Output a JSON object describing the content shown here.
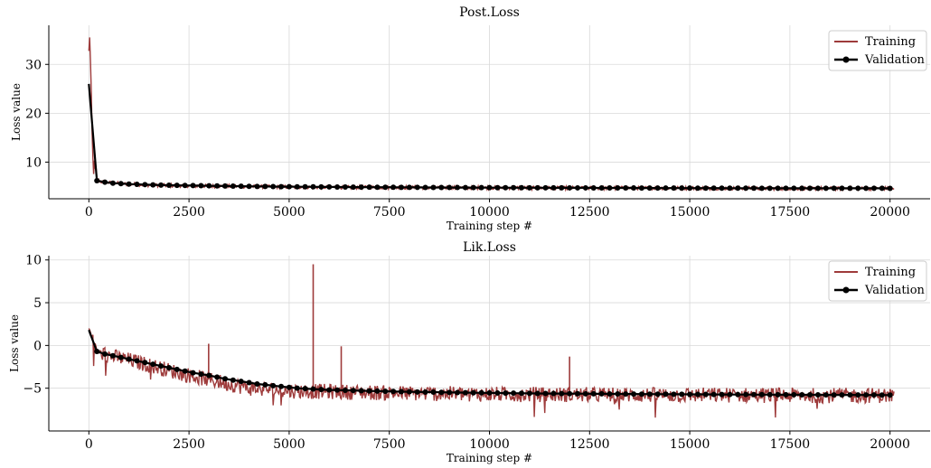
{
  "chart_data": [
    {
      "type": "line",
      "title": "Post.Loss",
      "xlabel": "Training step #",
      "ylabel": "Loss value",
      "xlim": [
        -1000,
        21000
      ],
      "ylim": [
        2.5,
        38
      ],
      "xticks": [
        0,
        2500,
        5000,
        7500,
        10000,
        12500,
        15000,
        17500,
        20000
      ],
      "yticks": [
        10,
        20,
        30
      ],
      "grid": true,
      "legend_position": "top-right",
      "series": [
        {
          "name": "Training",
          "style": "line",
          "color": "#9e3b3b",
          "x": [
            0,
            20,
            40,
            60,
            80,
            100,
            150,
            200,
            300,
            500,
            800,
            1000,
            1500,
            2000,
            3000,
            4000,
            5000,
            6000,
            8000,
            10000,
            12000,
            14000,
            16000,
            18000,
            20000
          ],
          "y": [
            32,
            36.5,
            30,
            22,
            15,
            10,
            8,
            6.5,
            6.0,
            5.8,
            5.6,
            5.5,
            5.3,
            5.2,
            5.1,
            5.0,
            4.9,
            4.85,
            4.8,
            4.75,
            4.7,
            4.7,
            4.65,
            4.6,
            4.6
          ]
        },
        {
          "name": "Validation",
          "style": "line-marker",
          "color": "#000000",
          "x": [
            0,
            200,
            400,
            600,
            800,
            1000,
            1200,
            1400,
            1600,
            1800,
            2000,
            2200,
            2400,
            2600,
            2800,
            3000,
            3200,
            3400,
            3600,
            3800,
            4000,
            4200,
            4400,
            4600,
            4800,
            5000,
            5200,
            5400,
            5600,
            5800,
            6000,
            6200,
            6400,
            6600,
            6800,
            7000,
            7200,
            7400,
            7600,
            7800,
            8000,
            8200,
            8400,
            8600,
            8800,
            9000,
            9200,
            9400,
            9600,
            9800,
            10000,
            10200,
            10400,
            10600,
            10800,
            11000,
            11200,
            11400,
            11600,
            11800,
            12000,
            12200,
            12400,
            12600,
            12800,
            13000,
            13200,
            13400,
            13600,
            13800,
            14000,
            14200,
            14400,
            14600,
            14800,
            15000,
            15200,
            15400,
            15600,
            15800,
            16000,
            16200,
            16400,
            16600,
            16800,
            17000,
            17200,
            17400,
            17600,
            17800,
            18000,
            18200,
            18400,
            18600,
            18800,
            19000,
            19200,
            19400,
            19600,
            19800,
            20000
          ],
          "y": [
            26,
            6.2,
            5.9,
            5.7,
            5.6,
            5.5,
            5.45,
            5.4,
            5.35,
            5.3,
            5.28,
            5.25,
            5.22,
            5.2,
            5.18,
            5.15,
            5.13,
            5.11,
            5.09,
            5.07,
            5.05,
            5.03,
            5.01,
            5.0,
            4.98,
            4.97,
            4.96,
            4.95,
            4.94,
            4.93,
            4.92,
            4.91,
            4.9,
            4.89,
            4.88,
            4.87,
            4.86,
            4.86,
            4.85,
            4.84,
            4.84,
            4.83,
            4.82,
            4.82,
            4.81,
            4.8,
            4.8,
            4.79,
            4.79,
            4.78,
            4.78,
            4.77,
            4.77,
            4.76,
            4.76,
            4.75,
            4.75,
            4.75,
            4.74,
            4.74,
            4.73,
            4.73,
            4.73,
            4.72,
            4.72,
            4.72,
            4.71,
            4.71,
            4.71,
            4.7,
            4.7,
            4.7,
            4.69,
            4.69,
            4.69,
            4.69,
            4.68,
            4.68,
            4.68,
            4.68,
            4.67,
            4.67,
            4.67,
            4.67,
            4.66,
            4.66,
            4.66,
            4.66,
            4.66,
            4.65,
            4.65,
            4.65,
            4.65,
            4.65,
            4.64,
            4.64,
            4.64,
            4.64,
            4.64,
            4.64,
            4.63
          ]
        }
      ]
    },
    {
      "type": "line",
      "title": "Lik.Loss",
      "xlabel": "Training step #",
      "ylabel": "Loss value",
      "xlim": [
        -1000,
        21000
      ],
      "ylim": [
        -10,
        10.5
      ],
      "xticks": [
        0,
        2500,
        5000,
        7500,
        10000,
        12500,
        15000,
        17500,
        20000
      ],
      "yticks": [
        -5,
        0,
        5,
        10
      ],
      "ytick_labels": [
        "−5",
        "0",
        "5",
        "10"
      ],
      "grid": true,
      "legend_position": "top-right",
      "series": [
        {
          "name": "Training",
          "style": "line",
          "color": "#9e3b3b",
          "x": [
            0,
            100,
            200,
            500,
            1000,
            1500,
            2000,
            2500,
            3000,
            3500,
            4000,
            5000,
            6000,
            7000,
            8000,
            9000,
            10000,
            12000,
            14000,
            16000,
            18000,
            20000
          ],
          "y": [
            1.8,
            1.0,
            -0.7,
            -1.2,
            -1.7,
            -2.3,
            -2.9,
            -3.5,
            -4.0,
            -4.5,
            -5.0,
            -5.3,
            -5.4,
            -5.5,
            -5.6,
            -5.65,
            -5.7,
            -5.75,
            -5.8,
            -5.8,
            -5.85,
            -5.85
          ]
        },
        {
          "name": "Validation",
          "style": "line-marker",
          "color": "#000000",
          "x": [
            0,
            200,
            400,
            600,
            800,
            1000,
            1200,
            1400,
            1600,
            1800,
            2000,
            2200,
            2400,
            2600,
            2800,
            3000,
            3200,
            3400,
            3600,
            3800,
            4000,
            4200,
            4400,
            4600,
            4800,
            5000,
            5200,
            5400,
            5600,
            5800,
            6000,
            6200,
            6400,
            6600,
            6800,
            7000,
            7200,
            7400,
            7600,
            7800,
            8000,
            8200,
            8400,
            8600,
            8800,
            9000,
            9200,
            9400,
            9600,
            9800,
            10000,
            10200,
            10400,
            10600,
            10800,
            11000,
            11200,
            11400,
            11600,
            11800,
            12000,
            12200,
            12400,
            12600,
            12800,
            13000,
            13200,
            13400,
            13600,
            13800,
            14000,
            14200,
            14400,
            14600,
            14800,
            15000,
            15200,
            15400,
            15600,
            15800,
            16000,
            16200,
            16400,
            16600,
            16800,
            17000,
            17200,
            17400,
            17600,
            17800,
            18000,
            18200,
            18400,
            18600,
            18800,
            19000,
            19200,
            19400,
            19600,
            19800,
            20000
          ],
          "y": [
            1.8,
            -0.7,
            -1.0,
            -1.2,
            -1.4,
            -1.6,
            -1.8,
            -2.0,
            -2.2,
            -2.4,
            -2.6,
            -2.8,
            -3.0,
            -3.2,
            -3.35,
            -3.5,
            -3.7,
            -3.9,
            -4.05,
            -4.2,
            -4.35,
            -4.5,
            -4.6,
            -4.7,
            -4.8,
            -4.9,
            -5.0,
            -5.05,
            -5.1,
            -5.15,
            -5.2,
            -5.22,
            -5.25,
            -5.27,
            -5.3,
            -5.32,
            -5.34,
            -5.36,
            -5.38,
            -5.4,
            -5.42,
            -5.44,
            -5.45,
            -5.46,
            -5.48,
            -5.5,
            -5.51,
            -5.52,
            -5.53,
            -5.54,
            -5.55,
            -5.56,
            -5.57,
            -5.58,
            -5.59,
            -5.6,
            -5.61,
            -5.62,
            -5.62,
            -5.63,
            -5.64,
            -5.64,
            -5.65,
            -5.66,
            -5.66,
            -5.67,
            -5.67,
            -5.68,
            -5.68,
            -5.69,
            -5.69,
            -5.7,
            -5.7,
            -5.71,
            -5.71,
            -5.72,
            -5.72,
            -5.72,
            -5.73,
            -5.73,
            -5.74,
            -5.74,
            -5.74,
            -5.75,
            -5.75,
            -5.75,
            -5.76,
            -5.76,
            -5.76,
            -5.77,
            -5.77,
            -5.77,
            -5.78,
            -5.78,
            -5.78,
            -5.78,
            -5.79,
            -5.79,
            -5.79,
            -5.8,
            -5.8
          ]
        }
      ],
      "spikes": [
        {
          "x": 2990,
          "y": 0.2
        },
        {
          "x": 5600,
          "y": 9.5
        },
        {
          "x": 6300,
          "y": -0.1
        },
        {
          "x": 12000,
          "y": -1.3
        }
      ]
    }
  ]
}
